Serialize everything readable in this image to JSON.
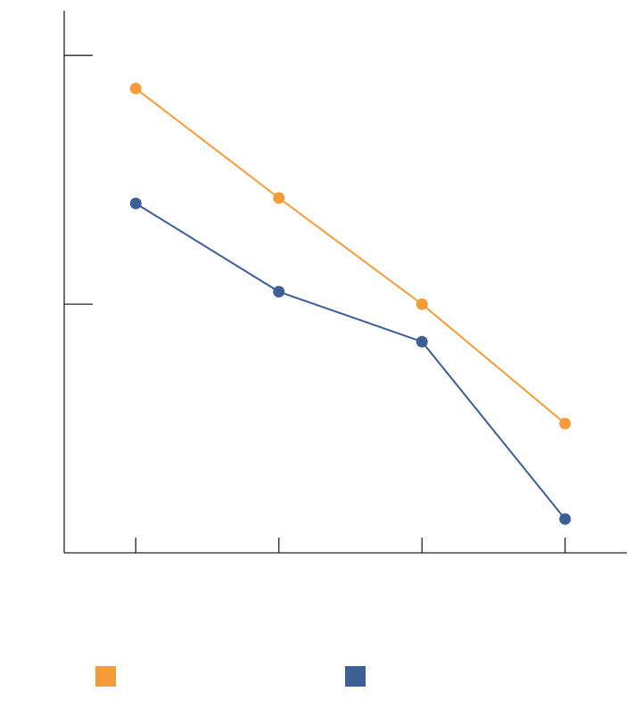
{
  "chart_data": {
    "type": "line",
    "categories": [
      null,
      null,
      null,
      null
    ],
    "series": [
      {
        "color": "#f59b38",
        "values": [
          1.867,
          1.427,
          1.0,
          0.52
        ]
      },
      {
        "color": "#3c5f96",
        "values": [
          1.405,
          1.05,
          0.849,
          0.136
        ]
      }
    ],
    "ylim": [
      0,
      2.18
    ],
    "yticks": [
      1,
      2
    ],
    "grid": false,
    "legend": "bottom"
  }
}
